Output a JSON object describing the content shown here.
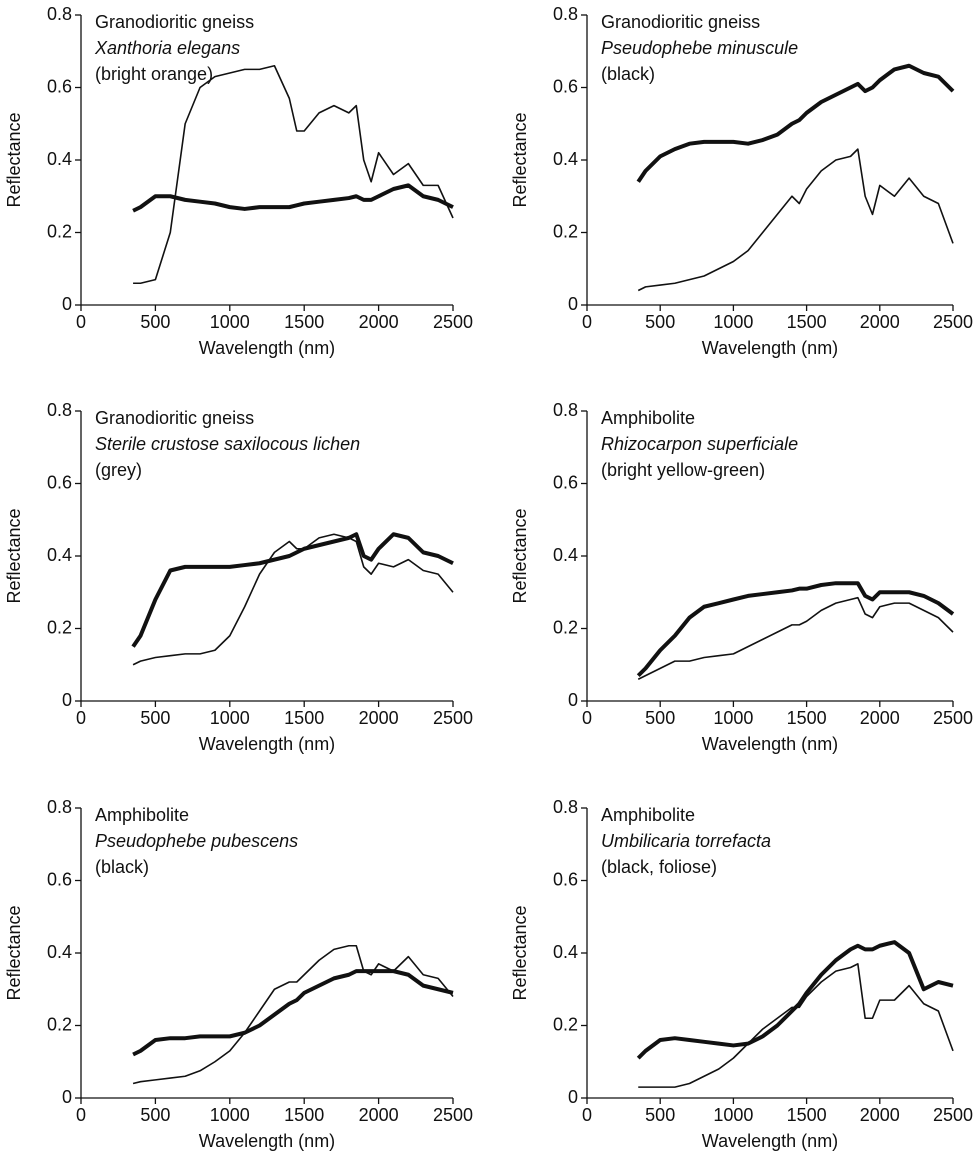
{
  "chart_data": [
    {
      "type": "line",
      "annotations": [
        "Granodioritic gneiss",
        "Xanthoria elegans",
        "(bright orange)"
      ],
      "xlabel": "Wavelength (nm)",
      "ylabel": "Reflectance",
      "xlim": [
        0,
        2500
      ],
      "xticks": [
        0,
        500,
        1000,
        1500,
        2000,
        2500
      ],
      "ylim": [
        0,
        0.8
      ],
      "yticks": [
        0,
        0.2,
        0.4,
        0.6,
        0.8
      ],
      "x": [
        350,
        400,
        500,
        600,
        700,
        800,
        900,
        1000,
        1100,
        1200,
        1300,
        1400,
        1450,
        1500,
        1600,
        1700,
        1800,
        1850,
        1900,
        1950,
        2000,
        2100,
        2200,
        2300,
        2400,
        2500
      ],
      "series": [
        {
          "color": "#111111",
          "values": [
            0.26,
            0.27,
            0.3,
            0.3,
            0.29,
            0.285,
            0.28,
            0.27,
            0.265,
            0.27,
            0.27,
            0.27,
            0.275,
            0.28,
            0.285,
            0.29,
            0.295,
            0.3,
            0.29,
            0.29,
            0.3,
            0.32,
            0.33,
            0.3,
            0.29,
            0.27
          ]
        },
        {
          "color": "#111111",
          "values": [
            0.06,
            0.06,
            0.07,
            0.2,
            0.5,
            0.6,
            0.63,
            0.64,
            0.65,
            0.65,
            0.66,
            0.57,
            0.48,
            0.48,
            0.53,
            0.55,
            0.53,
            0.55,
            0.4,
            0.34,
            0.42,
            0.36,
            0.39,
            0.33,
            0.33,
            0.24
          ]
        }
      ]
    },
    {
      "type": "line",
      "annotations": [
        "Granodioritic gneiss",
        "Pseudophebe minuscule",
        "(black)"
      ],
      "xlabel": "Wavelength (nm)",
      "ylabel": "Reflectance",
      "xlim": [
        0,
        2500
      ],
      "xticks": [
        0,
        500,
        1000,
        1500,
        2000,
        2500
      ],
      "ylim": [
        0,
        0.8
      ],
      "yticks": [
        0,
        0.2,
        0.4,
        0.6,
        0.8
      ],
      "x": [
        350,
        400,
        500,
        600,
        700,
        800,
        900,
        1000,
        1100,
        1200,
        1300,
        1400,
        1450,
        1500,
        1600,
        1700,
        1800,
        1850,
        1900,
        1950,
        2000,
        2100,
        2200,
        2300,
        2400,
        2500
      ],
      "series": [
        {
          "color": "#111111",
          "values": [
            0.34,
            0.37,
            0.41,
            0.43,
            0.445,
            0.45,
            0.45,
            0.45,
            0.445,
            0.455,
            0.47,
            0.5,
            0.51,
            0.53,
            0.56,
            0.58,
            0.6,
            0.61,
            0.59,
            0.6,
            0.62,
            0.65,
            0.66,
            0.64,
            0.63,
            0.59
          ]
        },
        {
          "color": "#111111",
          "values": [
            0.04,
            0.05,
            0.055,
            0.06,
            0.07,
            0.08,
            0.1,
            0.12,
            0.15,
            0.2,
            0.25,
            0.3,
            0.28,
            0.32,
            0.37,
            0.4,
            0.41,
            0.43,
            0.3,
            0.25,
            0.33,
            0.3,
            0.35,
            0.3,
            0.28,
            0.17
          ]
        }
      ]
    },
    {
      "type": "line",
      "annotations": [
        "Granodioritic gneiss",
        "Sterile crustose saxilocous lichen",
        "(grey)"
      ],
      "xlabel": "Wavelength (nm)",
      "ylabel": "Reflectance",
      "xlim": [
        0,
        2500
      ],
      "xticks": [
        0,
        500,
        1000,
        1500,
        2000,
        2500
      ],
      "ylim": [
        0,
        0.8
      ],
      "yticks": [
        0,
        0.2,
        0.4,
        0.6,
        0.8
      ],
      "x": [
        350,
        400,
        500,
        600,
        700,
        800,
        900,
        1000,
        1100,
        1200,
        1300,
        1400,
        1450,
        1500,
        1600,
        1700,
        1800,
        1850,
        1900,
        1950,
        2000,
        2100,
        2200,
        2300,
        2400,
        2500
      ],
      "series": [
        {
          "color": "#111111",
          "values": [
            0.15,
            0.18,
            0.28,
            0.36,
            0.37,
            0.37,
            0.37,
            0.37,
            0.375,
            0.38,
            0.39,
            0.4,
            0.41,
            0.42,
            0.43,
            0.44,
            0.45,
            0.46,
            0.4,
            0.39,
            0.42,
            0.46,
            0.45,
            0.41,
            0.4,
            0.38
          ]
        },
        {
          "color": "#111111",
          "values": [
            0.1,
            0.11,
            0.12,
            0.125,
            0.13,
            0.13,
            0.14,
            0.18,
            0.26,
            0.35,
            0.41,
            0.44,
            0.42,
            0.42,
            0.45,
            0.46,
            0.45,
            0.44,
            0.37,
            0.35,
            0.38,
            0.37,
            0.39,
            0.36,
            0.35,
            0.3
          ]
        }
      ]
    },
    {
      "type": "line",
      "annotations": [
        "Amphibolite",
        "Rhizocarpon superficiale",
        "(bright yellow-green)"
      ],
      "xlabel": "Wavelength (nm)",
      "ylabel": "Reflectance",
      "xlim": [
        0,
        2500
      ],
      "xticks": [
        0,
        500,
        1000,
        1500,
        2000,
        2500
      ],
      "ylim": [
        0,
        0.8
      ],
      "yticks": [
        0,
        0.2,
        0.4,
        0.6,
        0.8
      ],
      "x": [
        350,
        400,
        500,
        600,
        700,
        800,
        900,
        1000,
        1100,
        1200,
        1300,
        1400,
        1450,
        1500,
        1600,
        1700,
        1800,
        1850,
        1900,
        1950,
        2000,
        2100,
        2200,
        2300,
        2400,
        2500
      ],
      "series": [
        {
          "color": "#111111",
          "values": [
            0.07,
            0.09,
            0.14,
            0.18,
            0.23,
            0.26,
            0.27,
            0.28,
            0.29,
            0.295,
            0.3,
            0.305,
            0.31,
            0.31,
            0.32,
            0.325,
            0.325,
            0.325,
            0.29,
            0.28,
            0.3,
            0.3,
            0.3,
            0.29,
            0.27,
            0.24
          ]
        },
        {
          "color": "#111111",
          "values": [
            0.06,
            0.07,
            0.09,
            0.11,
            0.11,
            0.12,
            0.125,
            0.13,
            0.15,
            0.17,
            0.19,
            0.21,
            0.21,
            0.22,
            0.25,
            0.27,
            0.28,
            0.285,
            0.24,
            0.23,
            0.26,
            0.27,
            0.27,
            0.25,
            0.23,
            0.19
          ]
        }
      ]
    },
    {
      "type": "line",
      "annotations": [
        "Amphibolite",
        "Pseudophebe pubescens",
        "(black)"
      ],
      "xlabel": "Wavelength (nm)",
      "ylabel": "Reflectance",
      "xlim": [
        0,
        2500
      ],
      "xticks": [
        0,
        500,
        1000,
        1500,
        2000,
        2500
      ],
      "ylim": [
        0,
        0.8
      ],
      "yticks": [
        0,
        0.2,
        0.4,
        0.6,
        0.8
      ],
      "x": [
        350,
        400,
        500,
        600,
        700,
        800,
        900,
        1000,
        1100,
        1200,
        1300,
        1400,
        1450,
        1500,
        1600,
        1700,
        1800,
        1850,
        1900,
        1950,
        2000,
        2100,
        2200,
        2300,
        2400,
        2500
      ],
      "series": [
        {
          "color": "#111111",
          "values": [
            0.12,
            0.13,
            0.16,
            0.165,
            0.165,
            0.17,
            0.17,
            0.17,
            0.18,
            0.2,
            0.23,
            0.26,
            0.27,
            0.29,
            0.31,
            0.33,
            0.34,
            0.35,
            0.35,
            0.35,
            0.35,
            0.35,
            0.34,
            0.31,
            0.3,
            0.29
          ]
        },
        {
          "color": "#111111",
          "values": [
            0.04,
            0.045,
            0.05,
            0.055,
            0.06,
            0.075,
            0.1,
            0.13,
            0.18,
            0.24,
            0.3,
            0.32,
            0.32,
            0.34,
            0.38,
            0.41,
            0.42,
            0.42,
            0.35,
            0.34,
            0.37,
            0.35,
            0.39,
            0.34,
            0.33,
            0.28
          ]
        }
      ]
    },
    {
      "type": "line",
      "annotations": [
        "Amphibolite",
        "Umbilicaria torrefacta",
        "(black, foliose)"
      ],
      "xlabel": "Wavelength (nm)",
      "ylabel": "Reflectance",
      "xlim": [
        0,
        2500
      ],
      "xticks": [
        0,
        500,
        1000,
        1500,
        2000,
        2500
      ],
      "ylim": [
        0,
        0.8
      ],
      "yticks": [
        0,
        0.2,
        0.4,
        0.6,
        0.8
      ],
      "x": [
        350,
        400,
        500,
        600,
        700,
        800,
        900,
        1000,
        1100,
        1200,
        1300,
        1400,
        1450,
        1500,
        1600,
        1700,
        1800,
        1850,
        1900,
        1950,
        2000,
        2100,
        2200,
        2300,
        2400,
        2500
      ],
      "series": [
        {
          "color": "#111111",
          "values": [
            0.11,
            0.13,
            0.16,
            0.165,
            0.16,
            0.155,
            0.15,
            0.145,
            0.15,
            0.17,
            0.2,
            0.24,
            0.26,
            0.29,
            0.34,
            0.38,
            0.41,
            0.42,
            0.41,
            0.41,
            0.42,
            0.43,
            0.4,
            0.3,
            0.32,
            0.31
          ]
        },
        {
          "color": "#111111",
          "values": [
            0.03,
            0.03,
            0.03,
            0.03,
            0.04,
            0.06,
            0.08,
            0.11,
            0.15,
            0.19,
            0.22,
            0.25,
            0.25,
            0.28,
            0.32,
            0.35,
            0.36,
            0.37,
            0.22,
            0.22,
            0.27,
            0.27,
            0.31,
            0.26,
            0.24,
            0.13
          ]
        }
      ]
    }
  ]
}
